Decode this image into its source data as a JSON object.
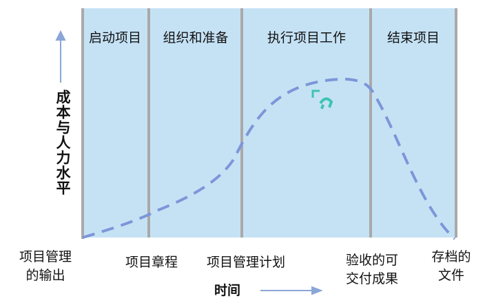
{
  "phases": [
    "启动项目",
    "组织和准备",
    "执行项目工作",
    "结束项目"
  ],
  "y_axis_label": "成本与人力水平",
  "x_axis_label": "时间",
  "outputs": [
    {
      "lines": [
        "项目管理",
        "的输出"
      ]
    },
    {
      "lines": [
        "项目章程"
      ]
    },
    {
      "lines": [
        "项目管理计划"
      ]
    },
    {
      "lines": [
        "验收的可",
        "交付成果"
      ]
    },
    {
      "lines": [
        "存档的",
        "文件"
      ]
    }
  ]
}
